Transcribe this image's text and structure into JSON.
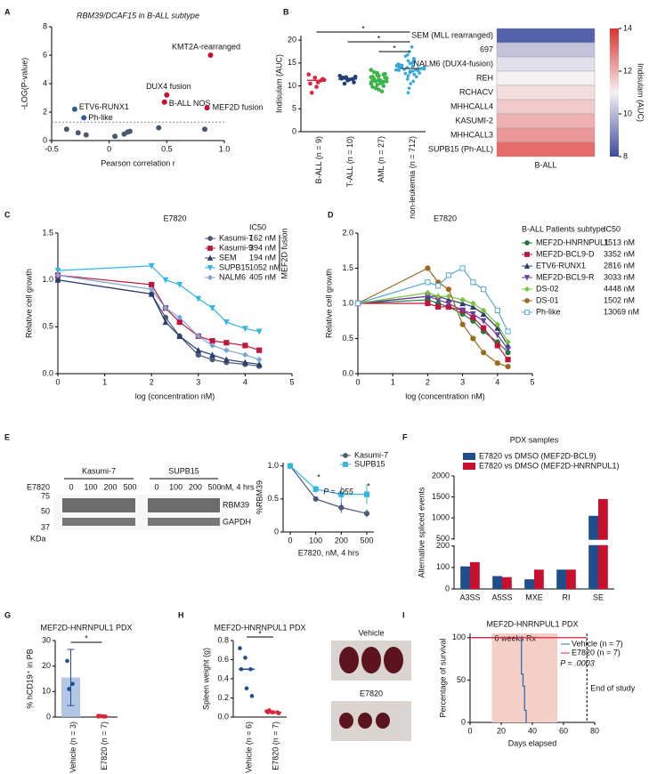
{
  "chart_data": [
    {
      "panel": "A",
      "type": "scatter",
      "title": "RBM39/DCAF15 in B-ALL subtype",
      "x_label": "Pearson correlation r",
      "y_label": "-LOG(P-value)",
      "xlim": [
        -0.5,
        1.0
      ],
      "ylim": [
        0,
        8
      ],
      "xticks": [
        -0.5,
        0,
        0.5,
        {
          "value": 1,
          "label": "1.0"
        }
      ],
      "yticks": [
        0,
        2,
        4,
        6,
        8
      ],
      "threshold": 1.3,
      "x": [
        -0.37,
        -0.27,
        -0.2,
        0.05,
        0.13,
        0.16,
        0.18,
        0.43,
        0.83,
        -0.3,
        -0.22,
        0.5,
        0.48,
        0.85,
        0.88
      ],
      "values": [
        0.8,
        0.55,
        0.4,
        0.3,
        0.45,
        0.6,
        0.65,
        0.9,
        0.8,
        2.2,
        1.6,
        3.2,
        2.7,
        2.3,
        6.0
      ],
      "colors": [
        "#4a5a6e",
        "#4a5a6e",
        "#4a5a6e",
        "#4a5a6e",
        "#4a5a6e",
        "#4a5a6e",
        "#4a5a6e",
        "#4a5a6e",
        "#4a5a6e",
        "#2f5b9a",
        "#2f5b9a",
        "#c8102e",
        "#c8102e",
        "#c8102e",
        "#c8102e"
      ],
      "point_labels": [
        null,
        null,
        null,
        null,
        null,
        null,
        null,
        null,
        null,
        "ETV6-RUNX1",
        "Ph-like",
        "DUX4 fusion",
        "B-ALL NOS",
        "MEF2D fusion",
        "KMT2A-rearranged"
      ]
    },
    {
      "panel": "B",
      "type": "strip",
      "y_label": "Indisulam (AUC)",
      "ylim": [
        0,
        21
      ],
      "yticks": [
        0,
        5,
        10,
        15,
        20
      ],
      "categories": [
        "B-ALL (n = 9)",
        "T-ALL (n = 10)",
        "AML (n = 27)",
        "non-leukemia (n = 712)"
      ],
      "colors": [
        "#d7263d",
        "#1f3f77",
        "#3cb44b",
        "#33a8e0"
      ],
      "series": [
        [
          12.5,
          11.8,
          11.2,
          10.5,
          9.8,
          11.5,
          8.5,
          10.8,
          11.3
        ],
        [
          12.2,
          11.9,
          11.5,
          11.6,
          11.2,
          10.8,
          11.8,
          11.4,
          12.0,
          10.5
        ],
        [
          13.5,
          12.8,
          12.5,
          12,
          12.2,
          11.8,
          11.5,
          11.2,
          11,
          11,
          10.8,
          10.5,
          10.2,
          10,
          9.8,
          11.4,
          12.6,
          13,
          10.6,
          11.7,
          9.5,
          8.8,
          11.9,
          12.3,
          10.9,
          11.1,
          9.2
        ],
        [
          13.5,
          14,
          13.8,
          14.2,
          13.2,
          12.8,
          14.5,
          15,
          13.9,
          13.6,
          12.5,
          14.8,
          15.5,
          16,
          13.4,
          13.1,
          12,
          14.1,
          14.3,
          13.7,
          11.5,
          15.2,
          16.5,
          17.5,
          13.3,
          14.6,
          12.9,
          13.8,
          14,
          10.5,
          18.5,
          9.5,
          13.5,
          14.4,
          12.2,
          15.8,
          13.6,
          14.9,
          11,
          16.8,
          13.2,
          14.1,
          12.7,
          15.4,
          8.5
        ]
      ],
      "medians": [
        11.2,
        11.5,
        11,
        13.8
      ],
      "significance": [
        "*",
        "*",
        "*"
      ]
    },
    {
      "type": "heatmap",
      "rows": [
        "SEM (MLL rearranged)",
        "697",
        "NALM6 (DUX4-fusion)",
        "REH",
        "RCHACV",
        "MHHCALL4",
        "KASUMI-2",
        "MHHCALL3",
        "SUPB15 (Ph-ALL)"
      ],
      "values": [
        8.4,
        10.2,
        10.7,
        11.0,
        11.3,
        11.6,
        12.0,
        12.4,
        13.1
      ],
      "label_colors": [
        "#5b5fb0",
        "#000000",
        "#5b5fb0",
        "#000000",
        "#000000",
        "#000000",
        "#000000",
        "#000000",
        "#d7263d"
      ],
      "x_label": "B-ALL",
      "colorbar_label": "Indisulam (AUC)",
      "clim": [
        8,
        14
      ],
      "cticks": [
        8,
        10,
        12,
        14
      ],
      "colormap": [
        "#3b4ca0",
        "#f5f0f2",
        "#e0312f"
      ]
    },
    {
      "panel": "C",
      "type": "line",
      "title": "E7820",
      "x_label": "log (concentration nM)",
      "y_label": "Relative cell growth",
      "xlim": [
        0,
        5
      ],
      "ylim": [
        0,
        1.5
      ],
      "xticks": [
        0,
        1,
        2,
        3,
        4,
        5
      ],
      "yticks": [
        {
          "value": 0,
          "label": "0.0"
        },
        0.5,
        {
          "value": 1,
          "label": "1.0"
        },
        1.5
      ],
      "legend_header": "IC50",
      "group_label": "MEF2D fusion",
      "x": [
        0,
        2,
        2.3,
        2.6,
        3,
        3.3,
        3.6,
        4,
        4.3
      ],
      "series": [
        {
          "name": "Kasumi-7",
          "ic50": "162 nM",
          "color": "#4a5a78",
          "marker": "circle",
          "values": [
            1.0,
            0.85,
            0.6,
            0.4,
            0.2,
            0.15,
            0.12,
            0.1,
            0.08
          ]
        },
        {
          "name": "Kasumi-9",
          "ic50": "394 nM",
          "color": "#c0143c",
          "marker": "square",
          "values": [
            1.05,
            0.95,
            0.7,
            0.55,
            0.4,
            0.35,
            0.33,
            0.3,
            0.25
          ]
        },
        {
          "name": "SEM",
          "ic50": "194 nM",
          "color": "#2b3d6e",
          "marker": "triangle",
          "values": [
            1.0,
            0.85,
            0.55,
            0.4,
            0.25,
            0.2,
            0.15,
            0.12,
            0.1
          ]
        },
        {
          "name": "SUPB15",
          "ic50": "1052 nM",
          "color": "#33b5e5",
          "marker": "tri-down",
          "values": [
            1.1,
            1.15,
            1.0,
            0.95,
            0.8,
            0.7,
            0.55,
            0.48,
            0.45
          ]
        },
        {
          "name": "NALM6",
          "ic50": "405 nM",
          "color": "#7aa6d6",
          "marker": "diamond",
          "values": [
            1.05,
            0.9,
            0.7,
            0.6,
            0.4,
            0.3,
            0.25,
            0.2,
            0.15
          ]
        }
      ]
    },
    {
      "panel": "D",
      "type": "line",
      "title": "E7820",
      "x_label": "log (concentration nM)",
      "y_label": "Relative cell growth",
      "xlim": [
        0,
        5
      ],
      "ylim": [
        0,
        2
      ],
      "xticks": [
        0,
        1,
        2,
        3,
        4,
        5
      ],
      "yticks": [
        {
          "value": 0,
          "label": "0.0"
        },
        0.5,
        {
          "value": 1,
          "label": "1.0"
        },
        1.5,
        {
          "value": 2,
          "label": "2.0"
        }
      ],
      "legend_title": "B-ALL Patients subtype",
      "legend_header": "IC50",
      "x": [
        0,
        2,
        2.3,
        2.6,
        3,
        3.3,
        3.6,
        4,
        4.3
      ],
      "series": [
        {
          "name": "MEF2D-HNRNPUL1",
          "ic50": "1513 nM",
          "color": "#1f7a3a",
          "marker": "circle",
          "values": [
            1,
            1.05,
            1.0,
            0.95,
            0.85,
            0.75,
            0.6,
            0.45,
            0.3
          ]
        },
        {
          "name": "MEF2D-BCL9-D",
          "ic50": "3352 nM",
          "color": "#c0143c",
          "marker": "square",
          "values": [
            1,
            1.0,
            0.95,
            0.95,
            0.9,
            0.8,
            0.65,
            0.4,
            0.2
          ]
        },
        {
          "name": "ETV6-RUNX1",
          "ic50": "2816 nM",
          "color": "#2b3d6e",
          "marker": "triangle",
          "values": [
            1,
            1.1,
            1.1,
            1.05,
            1.0,
            0.95,
            0.85,
            0.65,
            0.4
          ]
        },
        {
          "name": "MEF2D-BCL9-R",
          "ic50": "3033 nM",
          "color": "#6b3fa0",
          "marker": "tri-down",
          "values": [
            1,
            1.1,
            1.05,
            1.0,
            0.9,
            0.85,
            0.75,
            0.55,
            0.35
          ]
        },
        {
          "name": "DS-02",
          "ic50": "4448 nM",
          "color": "#7cc242",
          "marker": "diamond",
          "values": [
            1,
            1.15,
            1.1,
            1.1,
            1.05,
            1.0,
            0.9,
            0.7,
            0.45
          ]
        },
        {
          "name": "DS-01",
          "ic50": "1502 nM",
          "color": "#9c6a1e",
          "marker": "circle",
          "values": [
            1,
            1.5,
            1.3,
            1.2,
            0.7,
            0.5,
            0.3,
            0.15,
            0.1
          ]
        },
        {
          "name": "Ph-like",
          "ic50": "13069 nM",
          "color": "#5aa9d6",
          "marker": "open-square",
          "values": [
            1,
            1.3,
            1.25,
            1.4,
            1.5,
            1.3,
            1.2,
            0.9,
            0.6
          ]
        }
      ]
    },
    {
      "panel": "E",
      "type": "blot",
      "cell_lines": [
        "Kasumi-7",
        "SUPB15"
      ],
      "treatment": "E7820",
      "doses": [
        "0",
        "100",
        "200",
        "500"
      ],
      "dose_unit": "nM, 4 hrs",
      "markers": [
        "75",
        "50",
        "37"
      ],
      "marker_unit": "KDa",
      "bands": [
        "RBM39",
        "GAPDH"
      ]
    },
    {
      "type": "line",
      "x_label": "E7820, nM, 4 hrs",
      "y_label": "%RBM39",
      "categories": [
        "0",
        "100",
        "200",
        "500"
      ],
      "ylim": [
        0,
        1.05
      ],
      "yticks": [
        0,
        0.5,
        {
          "value": 1,
          "label": "1.0"
        }
      ],
      "annotations": [
        "*",
        "P = .055",
        "*"
      ],
      "series": [
        {
          "name": "Kasumi-7",
          "color": "#4a5a78",
          "marker": "circle",
          "values": [
            1,
            0.5,
            0.37,
            0.28
          ],
          "errors": [
            0,
            0.03,
            0.08,
            0.06
          ]
        },
        {
          "name": "SUPB15",
          "color": "#33b5e5",
          "marker": "square",
          "values": [
            1,
            0.65,
            0.57,
            0.57
          ],
          "errors": [
            0,
            0.05,
            0.12,
            0.15
          ]
        }
      ]
    },
    {
      "panel": "F",
      "type": "bar",
      "title": "PDX samples",
      "y_label": "Alternative spliced events",
      "categories": [
        "A3SS",
        "A5SS",
        "MXE",
        "RI",
        "SE"
      ],
      "ylim": [
        0,
        2000
      ],
      "ybreak": [
        200,
        500
      ],
      "yticks": [
        0,
        100,
        200,
        500,
        1000,
        1500,
        2000
      ],
      "series": [
        {
          "name": "E7820 vs DMSO (MEF2D-BCL9)",
          "color": "#1f4e8c",
          "values": [
            105,
            60,
            45,
            90,
            1050
          ]
        },
        {
          "name": "E7820 vs DMSO (MEF2D-HNRNPUL1)",
          "color": "#c8102e",
          "values": [
            125,
            55,
            90,
            90,
            1450
          ]
        }
      ]
    },
    {
      "panel": "G",
      "type": "dotbar",
      "title": "MEF2D-HNRNPUL1 PDX",
      "y_label": "% hCD19⁺ in PB",
      "categories": [
        "Vehicle (n = 3)",
        "E7820 (n = 7)"
      ],
      "ylim": [
        0,
        30
      ],
      "yticks": [
        0,
        10,
        20,
        30
      ],
      "values": [
        15.5,
        0.3
      ],
      "errors": [
        11,
        0.2
      ],
      "colors": [
        "#9db9de",
        "#d7263d"
      ],
      "point_colors": [
        "#1f4e8c",
        "#d7263d"
      ],
      "points": [
        [
          22,
          13,
          11
        ],
        [
          0.2,
          0.3,
          0.4,
          0.2,
          0.3,
          0.5,
          0.2
        ]
      ],
      "significance": "*"
    },
    {
      "panel": "H",
      "type": "strip",
      "title": "MEF2D-HNRNPUL1 PDX",
      "y_label": "Spleen weight (g)",
      "categories": [
        "Vehicle (n = 6)",
        "E7820 (n = 7)"
      ],
      "ylim": [
        0,
        0.8
      ],
      "yticks": [
        {
          "value": 0,
          "label": "0.0"
        },
        0.2,
        0.4,
        0.6,
        0.8
      ],
      "colors": [
        "#1f4e8c",
        "#d7263d"
      ],
      "series": [
        [
          0.72,
          0.62,
          0.5,
          0.5,
          0.3,
          0.22
        ],
        [
          0.06,
          0.05,
          0.05,
          0.05,
          0.05,
          0.04,
          0.07
        ]
      ],
      "medians": [
        0.5,
        0.05
      ],
      "significance": [
        "*"
      ],
      "photo_labels": [
        "Vehicle",
        "E7820"
      ]
    },
    {
      "panel": "I",
      "type": "survival",
      "title": "MEF2D-HNRNPUL1 PDX",
      "x_label": "Days elapsed",
      "y_label": "Percentage of survival",
      "xlim": [
        0,
        80
      ],
      "ylim": [
        0,
        105
      ],
      "xticks": [
        0,
        20,
        40,
        60,
        80
      ],
      "yticks": [
        0,
        50,
        100
      ],
      "treatment": [
        14,
        56
      ],
      "treatment_label": "6 weeks Rx",
      "end_of_study": 75,
      "end_label": "End of study",
      "p_value": "P = .0003",
      "series": [
        {
          "name": "Vehicle (n = 7)",
          "color": "#2f6db5",
          "x": [
            0,
            33,
            33,
            34,
            34,
            35,
            35,
            36,
            36
          ],
          "values": [
            100,
            100,
            57.1,
            57.1,
            42.9,
            42.9,
            14.3,
            14.3,
            0
          ]
        },
        {
          "name": "E7820 (n = 7)",
          "color": "#d7263d",
          "x": [
            0,
            75
          ],
          "values": [
            100,
            100
          ]
        }
      ]
    }
  ]
}
